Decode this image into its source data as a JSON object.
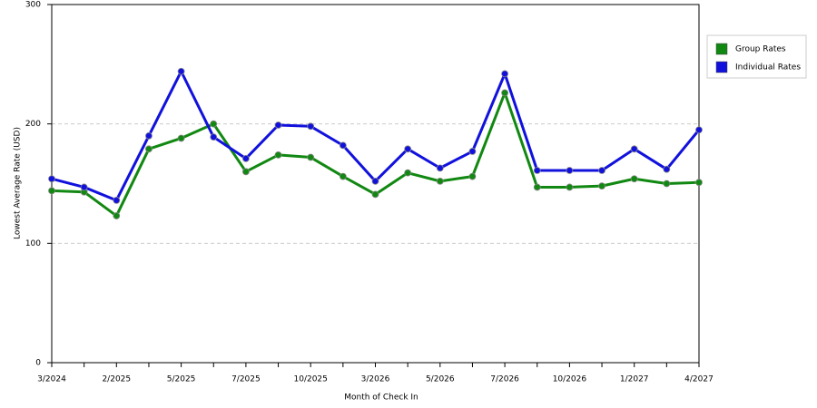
{
  "chart_data": {
    "type": "line",
    "categories": [
      "3/2024",
      null,
      "2/2025",
      null,
      "5/2025",
      null,
      "7/2025",
      null,
      "10/2025",
      null,
      "3/2026",
      null,
      "5/2026",
      null,
      "7/2026",
      null,
      "10/2026",
      null,
      "1/2027",
      null,
      "4/2027"
    ],
    "series": [
      {
        "name": "Group Rates",
        "color": "#118811",
        "values": [
          144,
          143,
          123,
          179,
          188,
          200,
          160,
          174,
          172,
          156,
          141,
          159,
          152,
          156,
          226,
          147,
          147,
          148,
          154,
          150,
          151
        ]
      },
      {
        "name": "Individual Rates",
        "color": "#1111dd",
        "values": [
          154,
          147,
          136,
          190,
          244,
          189,
          171,
          199,
          198,
          182,
          152,
          179,
          163,
          177,
          242,
          161,
          161,
          161,
          179,
          162,
          195
        ]
      }
    ],
    "ylim": [
      0,
      300
    ],
    "yticks": [
      0,
      100,
      200,
      300
    ],
    "grid": true,
    "legend": "right",
    "ylabel": "Lowest Average Rate (USD)",
    "xlabel": "Month of Check In"
  }
}
